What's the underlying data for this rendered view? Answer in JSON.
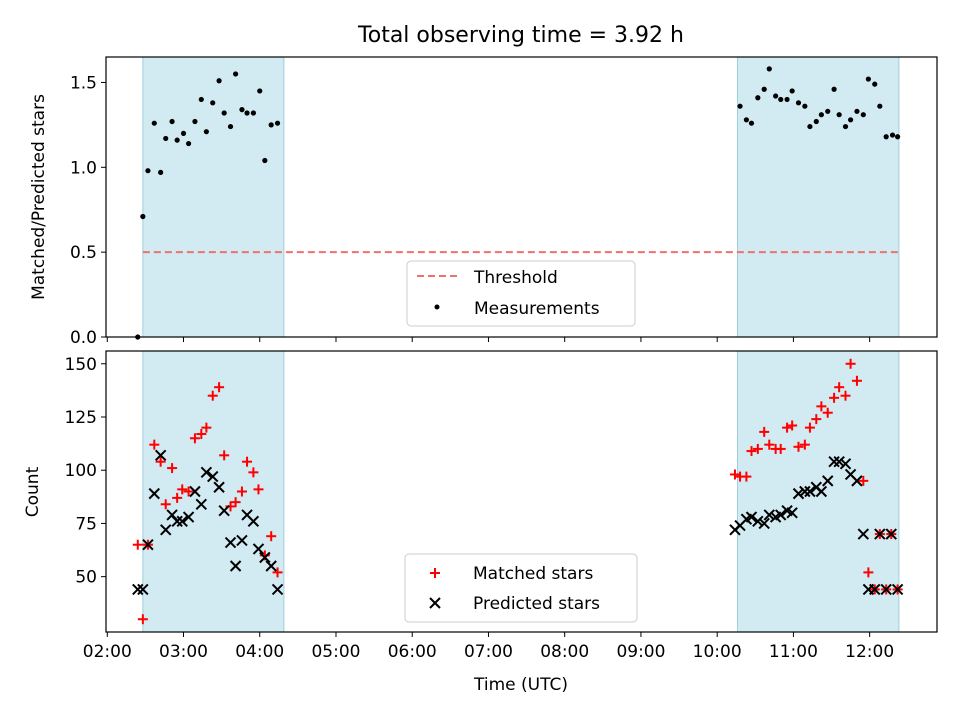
{
  "title": "Total observing time = 3.92 h",
  "chart_data": [
    {
      "type": "scatter",
      "ylabel": "Matched/Predicted stars",
      "ylim": [
        0,
        1.65
      ],
      "yticks": [
        0.0,
        0.5,
        1.0,
        1.5
      ],
      "ytick_labels": [
        "0.0",
        "0.5",
        "1.0",
        "1.5"
      ],
      "xlim": [
        "01:59",
        "12:53"
      ],
      "shaded_intervals": [
        [
          "02:28",
          "04:19"
        ],
        [
          "10:16",
          "12:23"
        ]
      ],
      "threshold": {
        "name": "Threshold",
        "value": 0.5,
        "x_range": [
          "02:28",
          "12:23"
        ],
        "color": "#f07070",
        "style": "dashed"
      },
      "series": [
        {
          "name": "Measurements",
          "color": "#000000",
          "x": [
            "02:24",
            "02:28",
            "02:32",
            "02:37",
            "02:42",
            "02:46",
            "02:51",
            "02:55",
            "02:60",
            "03:04",
            "03:09",
            "03:14",
            "03:18",
            "03:23",
            "03:28",
            "03:32",
            "03:37",
            "03:41",
            "03:46",
            "03:50",
            "03:55",
            "04:00",
            "04:04",
            "04:09",
            "04:14",
            "10:18",
            "10:23",
            "10:27",
            "10:32",
            "10:37",
            "10:41",
            "10:46",
            "10:50",
            "10:55",
            "10:59",
            "11:04",
            "11:09",
            "11:13",
            "11:18",
            "11:22",
            "11:27",
            "11:32",
            "11:36",
            "11:41",
            "11:45",
            "11:50",
            "11:55",
            "11:59",
            "12:04",
            "12:08",
            "12:13",
            "12:18",
            "12:22"
          ],
          "values": [
            0.0,
            0.71,
            0.98,
            1.26,
            0.97,
            1.17,
            1.27,
            1.16,
            1.2,
            1.14,
            1.27,
            1.4,
            1.21,
            1.38,
            1.51,
            1.32,
            1.24,
            1.55,
            1.34,
            1.32,
            1.32,
            1.45,
            1.04,
            1.25,
            1.26,
            1.36,
            1.28,
            1.26,
            1.41,
            1.46,
            1.58,
            1.42,
            1.4,
            1.4,
            1.45,
            1.38,
            1.36,
            1.24,
            1.27,
            1.31,
            1.33,
            1.46,
            1.31,
            1.24,
            1.28,
            1.33,
            1.31,
            1.52,
            1.49,
            1.36,
            1.18,
            1.19,
            1.18
          ]
        }
      ],
      "legend": {
        "placement": "lower-center",
        "entries": [
          "Threshold",
          "Measurements"
        ]
      }
    },
    {
      "type": "scatter",
      "ylabel": "Count",
      "xlabel": "Time (UTC)",
      "ylim": [
        24,
        156
      ],
      "yticks": [
        50,
        75,
        100,
        125,
        150
      ],
      "ytick_labels": [
        "50",
        "75",
        "100",
        "125",
        "150"
      ],
      "xlim": [
        "01:59",
        "12:53"
      ],
      "xticks": [
        "02:00",
        "03:00",
        "04:00",
        "05:00",
        "06:00",
        "07:00",
        "08:00",
        "09:00",
        "10:00",
        "11:00",
        "12:00"
      ],
      "xtick_labels": [
        "02:00",
        "03:00",
        "04:00",
        "05:00",
        "06:00",
        "07:00",
        "08:00",
        "09:00",
        "10:00",
        "11:00",
        "12:00"
      ],
      "shaded_intervals": [
        [
          "02:28",
          "04:19"
        ],
        [
          "10:16",
          "12:23"
        ]
      ],
      "series": [
        {
          "name": "Matched stars",
          "color": "#ff0000",
          "marker": "plus",
          "x": [
            "02:24",
            "02:28",
            "02:32",
            "02:37",
            "02:42",
            "02:46",
            "02:51",
            "02:55",
            "02:59",
            "03:04",
            "03:09",
            "03:14",
            "03:18",
            "03:23",
            "03:28",
            "03:32",
            "03:37",
            "03:41",
            "03:46",
            "03:50",
            "03:55",
            "03:59",
            "04:04",
            "04:09",
            "04:14",
            "10:14",
            "10:18",
            "10:23",
            "10:27",
            "10:32",
            "10:37",
            "10:41",
            "10:46",
            "10:50",
            "10:55",
            "10:59",
            "11:04",
            "11:09",
            "11:13",
            "11:18",
            "11:22",
            "11:27",
            "11:32",
            "11:36",
            "11:41",
            "11:45",
            "11:50",
            "11:55",
            "11:59",
            "12:04",
            "12:08",
            "12:13",
            "12:17",
            "12:22"
          ],
          "values": [
            65,
            30,
            65,
            112,
            104,
            84,
            101,
            87,
            91,
            90,
            115,
            117,
            120,
            135,
            139,
            107,
            83,
            85,
            90,
            104,
            99,
            91,
            60,
            69,
            52,
            98,
            97,
            97,
            109,
            110,
            118,
            112,
            110,
            110,
            120,
            121,
            111,
            112,
            120,
            124,
            130,
            127,
            134,
            139,
            135,
            150,
            142,
            95,
            52,
            44,
            70,
            44,
            70,
            44
          ]
        },
        {
          "name": "Predicted stars",
          "color": "#000000",
          "marker": "x",
          "x": [
            "02:24",
            "02:28",
            "02:32",
            "02:37",
            "02:42",
            "02:46",
            "02:51",
            "02:55",
            "02:59",
            "03:04",
            "03:09",
            "03:14",
            "03:18",
            "03:23",
            "03:28",
            "03:32",
            "03:37",
            "03:41",
            "03:46",
            "03:50",
            "03:55",
            "03:59",
            "04:04",
            "04:09",
            "04:14",
            "10:14",
            "10:18",
            "10:23",
            "10:27",
            "10:32",
            "10:37",
            "10:41",
            "10:46",
            "10:50",
            "10:55",
            "10:59",
            "11:04",
            "11:09",
            "11:13",
            "11:18",
            "11:22",
            "11:27",
            "11:32",
            "11:36",
            "11:41",
            "11:45",
            "11:50",
            "11:55",
            "11:59",
            "12:04",
            "12:08",
            "12:13",
            "12:17",
            "12:22"
          ],
          "values": [
            44,
            44,
            65,
            89,
            107,
            72,
            79,
            76,
            76,
            78,
            90,
            84,
            99,
            97,
            92,
            81,
            66,
            55,
            67,
            79,
            76,
            63,
            59,
            55,
            44,
            72,
            74,
            77,
            78,
            76,
            75,
            79,
            78,
            79,
            81,
            80,
            89,
            90,
            90,
            92,
            90,
            95,
            104,
            104,
            103,
            98,
            95,
            70,
            44,
            44,
            70,
            44,
            70,
            44
          ]
        }
      ],
      "legend": {
        "placement": "lower-center",
        "entries": [
          "Matched stars",
          "Predicted stars"
        ]
      }
    }
  ]
}
